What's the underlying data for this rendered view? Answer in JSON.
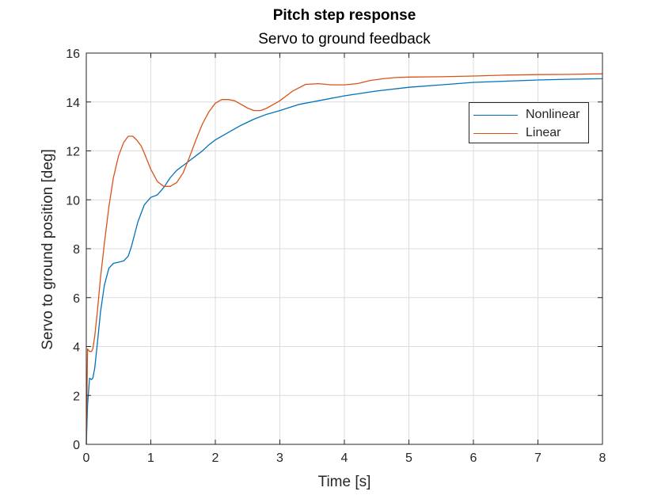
{
  "chart_data": {
    "type": "line",
    "title": "Pitch step response",
    "subtitle": "Servo to ground feedback",
    "xlabel": "Time [s]",
    "ylabel": "Servo to ground position [deg]",
    "xlim": [
      0,
      8
    ],
    "ylim": [
      0,
      16
    ],
    "xticks": [
      0,
      1,
      2,
      3,
      4,
      5,
      6,
      7,
      8
    ],
    "yticks": [
      0,
      2,
      4,
      6,
      8,
      10,
      12,
      14,
      16
    ],
    "grid": true,
    "legend_position": "top-right",
    "series": [
      {
        "name": "Nonlinear",
        "color": "#0072BD",
        "x": [
          0,
          0.02,
          0.05,
          0.08,
          0.1,
          0.13,
          0.17,
          0.22,
          0.28,
          0.35,
          0.42,
          0.5,
          0.58,
          0.65,
          0.7,
          0.75,
          0.8,
          0.9,
          1.0,
          1.1,
          1.2,
          1.3,
          1.4,
          1.5,
          1.6,
          1.7,
          1.8,
          1.9,
          2.0,
          2.2,
          2.4,
          2.6,
          2.8,
          3.0,
          3.3,
          3.6,
          4.0,
          4.5,
          5.0,
          5.5,
          6.0,
          6.5,
          7.0,
          7.5,
          8.0
        ],
        "y": [
          0,
          1.6,
          2.7,
          2.65,
          2.7,
          3.1,
          4.1,
          5.4,
          6.5,
          7.2,
          7.4,
          7.45,
          7.5,
          7.7,
          8.1,
          8.6,
          9.1,
          9.8,
          10.1,
          10.2,
          10.5,
          10.9,
          11.2,
          11.4,
          11.6,
          11.8,
          12.0,
          12.25,
          12.45,
          12.75,
          13.05,
          13.3,
          13.5,
          13.65,
          13.9,
          14.05,
          14.25,
          14.45,
          14.6,
          14.7,
          14.8,
          14.85,
          14.9,
          14.93,
          14.95
        ]
      },
      {
        "name": "Linear",
        "color": "#D95319",
        "x": [
          0,
          0.02,
          0.05,
          0.08,
          0.1,
          0.13,
          0.17,
          0.22,
          0.28,
          0.35,
          0.42,
          0.5,
          0.58,
          0.65,
          0.72,
          0.78,
          0.85,
          0.9,
          1.0,
          1.1,
          1.2,
          1.3,
          1.4,
          1.5,
          1.6,
          1.7,
          1.8,
          1.9,
          2.0,
          2.1,
          2.2,
          2.3,
          2.4,
          2.5,
          2.6,
          2.7,
          2.8,
          2.9,
          3.0,
          3.2,
          3.4,
          3.6,
          3.8,
          4.0,
          4.2,
          4.4,
          4.6,
          4.8,
          5.0,
          5.5,
          6.0,
          6.5,
          7.0,
          7.5,
          8.0
        ],
        "y": [
          0,
          3.9,
          3.8,
          3.8,
          3.9,
          4.4,
          5.4,
          6.8,
          8.2,
          9.7,
          10.9,
          11.8,
          12.35,
          12.6,
          12.6,
          12.45,
          12.2,
          11.9,
          11.25,
          10.75,
          10.55,
          10.55,
          10.7,
          11.1,
          11.75,
          12.45,
          13.1,
          13.6,
          13.95,
          14.1,
          14.1,
          14.05,
          13.9,
          13.75,
          13.65,
          13.65,
          13.75,
          13.9,
          14.05,
          14.45,
          14.72,
          14.75,
          14.7,
          14.7,
          14.75,
          14.88,
          14.95,
          15.0,
          15.02,
          15.03,
          15.06,
          15.1,
          15.12,
          15.13,
          15.15
        ]
      }
    ]
  }
}
